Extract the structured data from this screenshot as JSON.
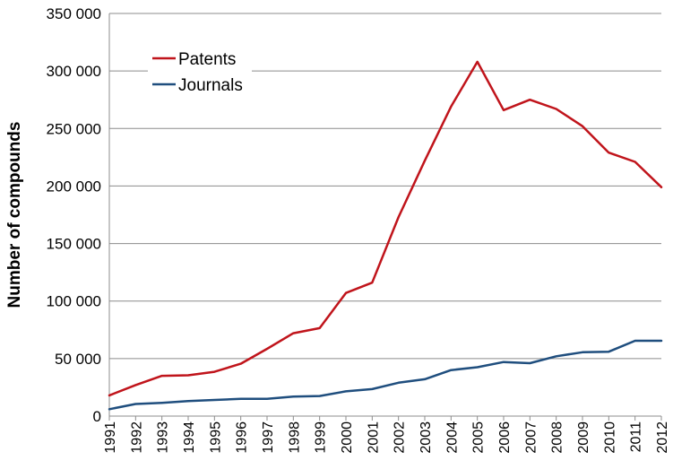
{
  "chart_data": {
    "type": "line",
    "title": "",
    "xlabel": "",
    "ylabel": "Number of compounds",
    "x": [
      "1991",
      "1992",
      "1993",
      "1994",
      "1995",
      "1996",
      "1997",
      "1998",
      "1999",
      "2000",
      "2001",
      "2002",
      "2003",
      "2004",
      "2005",
      "2006",
      "2007",
      "2008",
      "2009",
      "2010",
      "2011",
      "2012"
    ],
    "yticks": [
      {
        "value": 0,
        "label": "0"
      },
      {
        "value": 50000,
        "label": "50 000"
      },
      {
        "value": 100000,
        "label": "100 000"
      },
      {
        "value": 150000,
        "label": "150 000"
      },
      {
        "value": 200000,
        "label": "200 000"
      },
      {
        "value": 250000,
        "label": "250 000"
      },
      {
        "value": 300000,
        "label": "300 000"
      },
      {
        "value": 350000,
        "label": "350 000"
      }
    ],
    "ylim": [
      0,
      350000
    ],
    "grid": "horizontal",
    "legend_position": "top-left",
    "series": [
      {
        "name": "Patents",
        "color": "#c0141b",
        "values": [
          18000,
          27000,
          35000,
          35500,
          38500,
          45500,
          58500,
          72000,
          76500,
          107000,
          116000,
          173000,
          222000,
          269000,
          308000,
          266000,
          275000,
          267000,
          252000,
          229000,
          221000,
          199000
        ]
      },
      {
        "name": "Journals",
        "color": "#1f4e7e",
        "values": [
          6000,
          10500,
          11500,
          13000,
          14000,
          15000,
          15000,
          17000,
          17500,
          21500,
          23500,
          29000,
          32000,
          40000,
          42500,
          47000,
          46000,
          52000,
          55500,
          56000,
          65500,
          65500
        ]
      }
    ]
  }
}
